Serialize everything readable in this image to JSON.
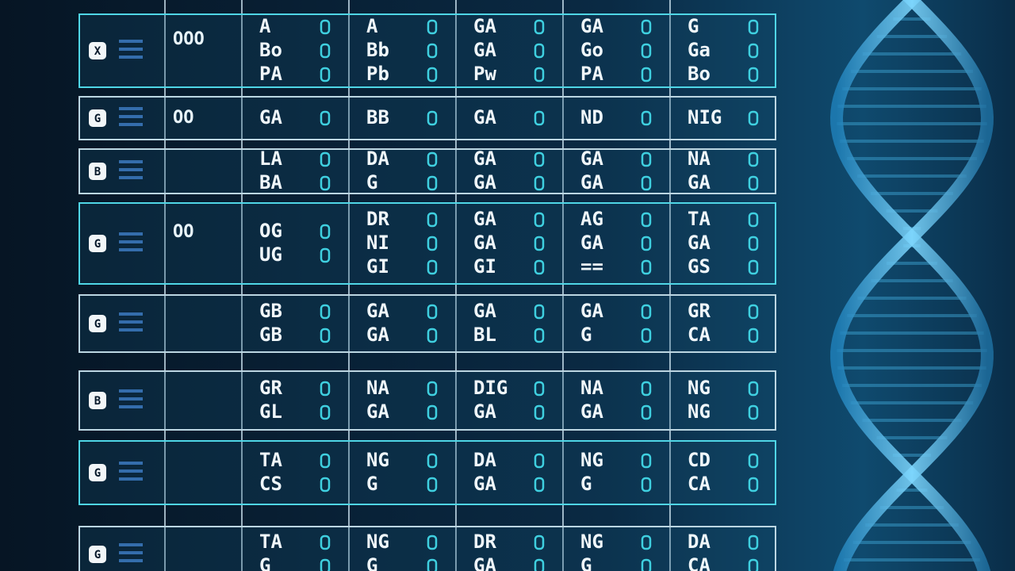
{
  "grid": {
    "rows": [
      {
        "icon": "X",
        "counter": "OOO",
        "cells": [
          [
            "A",
            "Bo",
            "PA"
          ],
          [
            "A",
            "Bb",
            "Pb"
          ],
          [
            "GA",
            "GA",
            "Pw"
          ],
          [
            "GA",
            "Go",
            "PA"
          ],
          [
            "G",
            "Ga",
            "Bo"
          ]
        ]
      },
      {
        "icon": "G",
        "counter": "OO",
        "cells": [
          [
            "GA"
          ],
          [
            "BB"
          ],
          [
            "GA"
          ],
          [
            "ND"
          ],
          [
            "NIG"
          ]
        ]
      },
      {
        "icon": "B",
        "cells": [
          [
            "LA",
            "BA"
          ],
          [
            "DA",
            "G"
          ],
          [
            "GA",
            "GA"
          ],
          [
            "GA",
            "GA"
          ],
          [
            "NA",
            "GA"
          ]
        ]
      },
      {
        "icon": "G",
        "counter": "OO",
        "cells": [
          [
            "OG",
            "UG"
          ],
          [
            "DR",
            "NI",
            "GI"
          ],
          [
            "GA",
            "GA",
            "GI"
          ],
          [
            "AG",
            "GA",
            "=="
          ],
          [
            "TA",
            "GA",
            "GS"
          ]
        ]
      },
      {
        "icon": "G",
        "cells": [
          [
            "GB",
            "GB"
          ],
          [
            "GA",
            "GA"
          ],
          [
            "GA",
            "BL"
          ],
          [
            "GA",
            "G"
          ],
          [
            "GR",
            "CA"
          ]
        ]
      },
      {
        "icon": "B",
        "cells": [
          [
            "GR",
            "GL"
          ],
          [
            "NA",
            "GA"
          ],
          [
            "DIG",
            "GA"
          ],
          [
            "NA",
            "GA"
          ],
          [
            "NG",
            "NG"
          ]
        ]
      },
      {
        "icon": "G",
        "cells": [
          [
            "TA",
            "CS"
          ],
          [
            "NG",
            "G"
          ],
          [
            "DA",
            "GA"
          ],
          [
            "NG",
            "G"
          ],
          [
            "CD",
            "CA"
          ]
        ]
      },
      {
        "icon": "G",
        "cells": [
          [
            "TA",
            "G"
          ],
          [
            "NG",
            "G"
          ],
          [
            "DR",
            "GA"
          ],
          [
            "NG",
            "G"
          ],
          [
            "DA",
            "CA"
          ]
        ]
      }
    ]
  }
}
